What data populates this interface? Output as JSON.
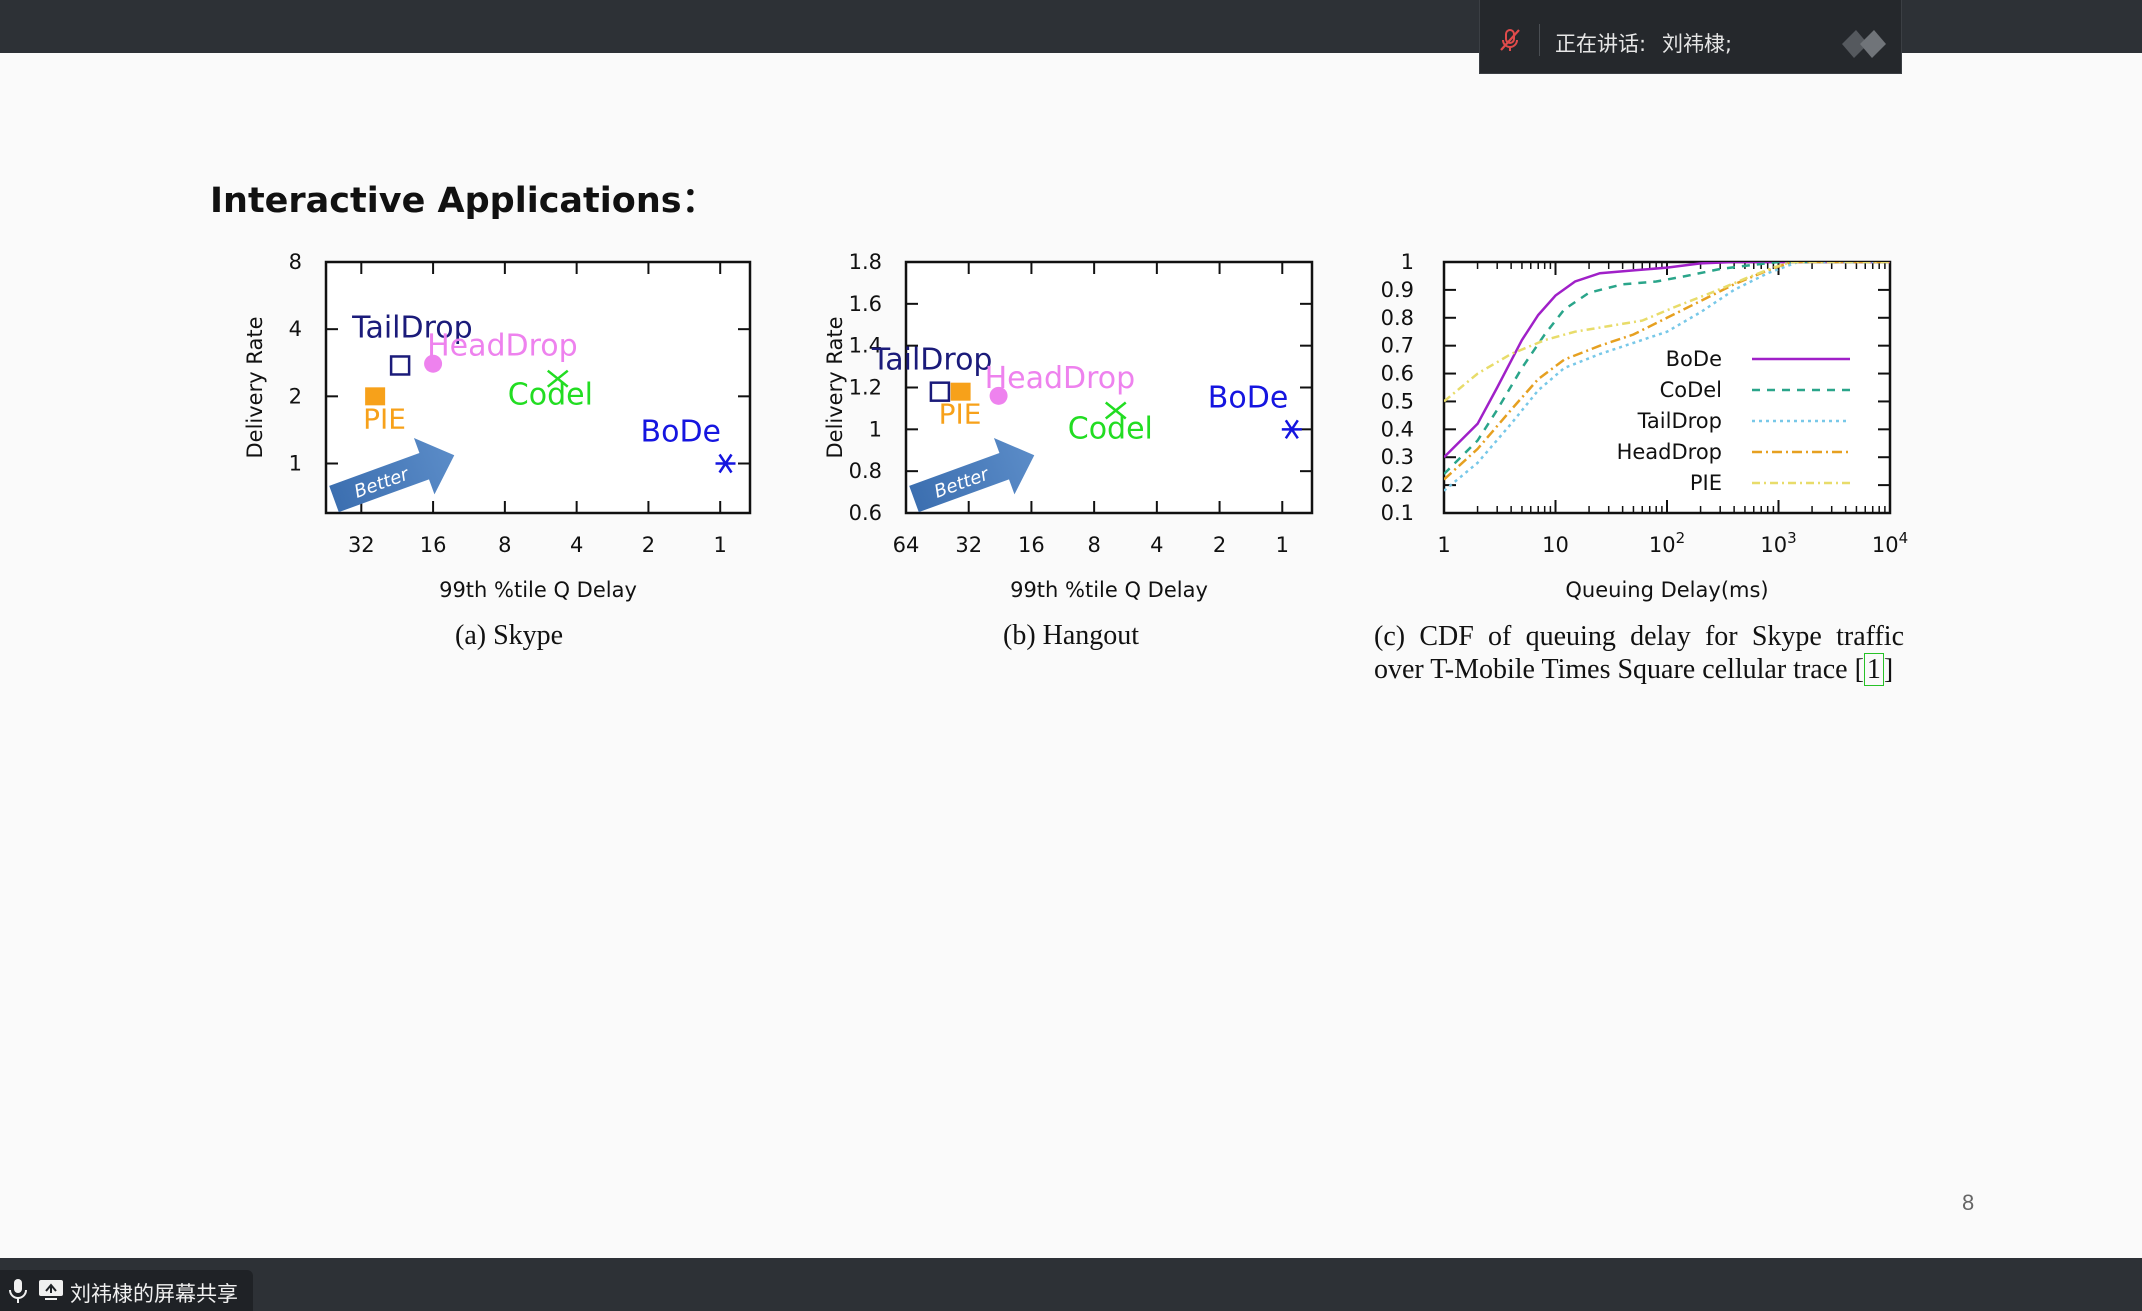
{
  "meeting": {
    "speaking_label": "正在讲话:",
    "speaker_name": "刘祎棣;",
    "share_label": "刘祎棣的屏幕共享"
  },
  "slide": {
    "title": "Interactive Applications：",
    "page_number": "8"
  },
  "chart_data": [
    {
      "type": "scatter",
      "caption": "(a) Skype",
      "xlabel": "99th %tile Q Delay",
      "ylabel": "Delivery Rate",
      "x_ticks": [
        "32",
        "16",
        "8",
        "4",
        "2",
        "1"
      ],
      "y_ticks": [
        "8",
        "4",
        "2",
        "1"
      ],
      "x_scale": "log2-reversed",
      "y_scale": "log2",
      "xlim": [
        45,
        0.75
      ],
      "ylim": [
        0.6,
        8
      ],
      "points": [
        {
          "name": "TailDrop",
          "x": 22,
          "y": 2.75,
          "marker": "open-square",
          "color": "#1b1b7a"
        },
        {
          "name": "HeadDrop",
          "x": 16,
          "y": 2.8,
          "marker": "filled-circle",
          "color": "#ee82ee"
        },
        {
          "name": "PIE",
          "x": 28,
          "y": 2.0,
          "marker": "filled-square",
          "color": "#f7a11a"
        },
        {
          "name": "Codel",
          "x": 4.8,
          "y": 2.4,
          "marker": "x",
          "color": "#22dd22"
        },
        {
          "name": "BoDe",
          "x": 0.95,
          "y": 1.0,
          "marker": "asterisk",
          "color": "#1515e0"
        }
      ],
      "annotation": "Better"
    },
    {
      "type": "scatter",
      "caption": "(b) Hangout",
      "xlabel": "99th %tile Q Delay",
      "ylabel": "Delivery Rate",
      "x_ticks": [
        "64",
        "32",
        "16",
        "8",
        "4",
        "2",
        "1"
      ],
      "y_ticks": [
        "1.8",
        "1.6",
        "1.4",
        "1.2",
        "1",
        "0.8",
        "0.6"
      ],
      "x_scale": "log2-reversed",
      "y_scale": "linear",
      "xlim": [
        64,
        0.72
      ],
      "ylim": [
        0.6,
        1.8
      ],
      "points": [
        {
          "name": "TailDrop",
          "x": 44,
          "y": 1.18,
          "marker": "open-square",
          "color": "#1b1b7a"
        },
        {
          "name": "PIE",
          "x": 35,
          "y": 1.18,
          "marker": "filled-square",
          "color": "#f7a11a"
        },
        {
          "name": "HeadDrop",
          "x": 23,
          "y": 1.16,
          "marker": "filled-circle",
          "color": "#ee82ee"
        },
        {
          "name": "Codel",
          "x": 6.3,
          "y": 1.09,
          "marker": "x",
          "color": "#22dd22"
        },
        {
          "name": "BoDe",
          "x": 0.9,
          "y": 1.0,
          "marker": "asterisk",
          "color": "#1515e0"
        }
      ],
      "annotation": "Better"
    },
    {
      "type": "line",
      "caption_line1": "(c) CDF of queuing delay for Skype traffic",
      "caption_line2": "over T-Mobile Times Square cellular trace [",
      "caption_cite": "1",
      "caption_end": "]",
      "xlabel": "Queuing Delay(ms)",
      "x_scale": "log10",
      "xlim": [
        1,
        10000
      ],
      "ylim": [
        0.1,
        1
      ],
      "x_ticks": [
        {
          "base": "1",
          "exp": ""
        },
        {
          "base": "10",
          "exp": ""
        },
        {
          "base": "10",
          "exp": "2"
        },
        {
          "base": "10",
          "exp": "3"
        },
        {
          "base": "10",
          "exp": "4"
        }
      ],
      "y_ticks": [
        "1",
        "0.9",
        "0.8",
        "0.7",
        "0.6",
        "0.5",
        "0.4",
        "0.3",
        "0.2",
        "0.1"
      ],
      "legend_position": "right",
      "series": [
        {
          "name": "BoDe",
          "color": "#a020c8",
          "dash": "",
          "points": [
            [
              1,
              0.3
            ],
            [
              2,
              0.42
            ],
            [
              3,
              0.55
            ],
            [
              5,
              0.72
            ],
            [
              7,
              0.81
            ],
            [
              10,
              0.88
            ],
            [
              15,
              0.93
            ],
            [
              25,
              0.96
            ],
            [
              50,
              0.97
            ],
            [
              100,
              0.98
            ],
            [
              200,
              0.995
            ],
            [
              400,
              1.0
            ],
            [
              10000,
              1.0
            ]
          ]
        },
        {
          "name": "CoDel",
          "color": "#2aa58a",
          "dash": "8,7",
          "points": [
            [
              1,
              0.24
            ],
            [
              2,
              0.36
            ],
            [
              3,
              0.47
            ],
            [
              5,
              0.62
            ],
            [
              8,
              0.74
            ],
            [
              12,
              0.83
            ],
            [
              20,
              0.89
            ],
            [
              40,
              0.92
            ],
            [
              80,
              0.93
            ],
            [
              150,
              0.95
            ],
            [
              300,
              0.975
            ],
            [
              600,
              0.99
            ],
            [
              1000,
              1.0
            ],
            [
              10000,
              1.0
            ]
          ]
        },
        {
          "name": "TailDrop",
          "color": "#78c8e8",
          "dash": "3,4",
          "points": [
            [
              1,
              0.18
            ],
            [
              2,
              0.28
            ],
            [
              4,
              0.42
            ],
            [
              7,
              0.54
            ],
            [
              12,
              0.62
            ],
            [
              25,
              0.67
            ],
            [
              50,
              0.71
            ],
            [
              100,
              0.75
            ],
            [
              200,
              0.82
            ],
            [
              400,
              0.9
            ],
            [
              800,
              0.96
            ],
            [
              1500,
              1.0
            ],
            [
              10000,
              1.0
            ]
          ]
        },
        {
          "name": "HeadDrop",
          "color": "#e6a020",
          "dash": "10,4,2,4",
          "points": [
            [
              1,
              0.22
            ],
            [
              2,
              0.33
            ],
            [
              4,
              0.47
            ],
            [
              7,
              0.58
            ],
            [
              12,
              0.65
            ],
            [
              25,
              0.7
            ],
            [
              50,
              0.74
            ],
            [
              100,
              0.8
            ],
            [
              200,
              0.86
            ],
            [
              400,
              0.92
            ],
            [
              800,
              0.97
            ],
            [
              1300,
              1.0
            ],
            [
              10000,
              1.0
            ]
          ]
        },
        {
          "name": "PIE",
          "color": "#e8dc6a",
          "dash": "8,4,2,4",
          "points": [
            [
              1,
              0.5
            ],
            [
              2,
              0.6
            ],
            [
              4,
              0.67
            ],
            [
              8,
              0.72
            ],
            [
              15,
              0.75
            ],
            [
              30,
              0.77
            ],
            [
              60,
              0.79
            ],
            [
              120,
              0.84
            ],
            [
              250,
              0.89
            ],
            [
              500,
              0.94
            ],
            [
              900,
              0.98
            ],
            [
              1300,
              1.0
            ],
            [
              10000,
              1.0
            ]
          ]
        }
      ]
    }
  ]
}
